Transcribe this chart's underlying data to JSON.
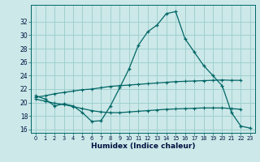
{
  "xlabel": "Humidex (Indice chaleur)",
  "x_values": [
    0,
    1,
    2,
    3,
    4,
    5,
    6,
    7,
    8,
    9,
    10,
    11,
    12,
    13,
    14,
    15,
    16,
    17,
    18,
    19,
    20,
    21,
    22,
    23
  ],
  "line_main": [
    21.0,
    20.5,
    19.5,
    19.8,
    19.5,
    18.5,
    17.2,
    17.3,
    19.5,
    22.2,
    25.0,
    28.5,
    30.5,
    31.5,
    33.2,
    33.5,
    29.5,
    27.5,
    25.5,
    24.0,
    22.5,
    18.5,
    16.5,
    16.2
  ],
  "line_upper": [
    20.8,
    21.0,
    21.3,
    21.5,
    21.7,
    21.9,
    22.0,
    22.2,
    22.4,
    22.5,
    22.6,
    22.7,
    22.8,
    22.9,
    23.0,
    23.1,
    23.15,
    23.2,
    23.25,
    23.3,
    23.35,
    23.3,
    23.3,
    null
  ],
  "line_lower": [
    20.5,
    20.2,
    19.9,
    19.7,
    19.4,
    19.1,
    18.8,
    18.6,
    18.5,
    18.5,
    18.6,
    18.7,
    18.8,
    18.9,
    19.0,
    19.05,
    19.1,
    19.15,
    19.2,
    19.2,
    19.2,
    19.1,
    19.0,
    null
  ],
  "bg_color": "#cce8e8",
  "grid_color": "#99cccc",
  "line_color": "#006666",
  "ylim": [
    15.5,
    34.5
  ],
  "yticks": [
    16,
    18,
    20,
    22,
    24,
    26,
    28,
    30,
    32
  ],
  "xlim": [
    -0.5,
    23.5
  ]
}
